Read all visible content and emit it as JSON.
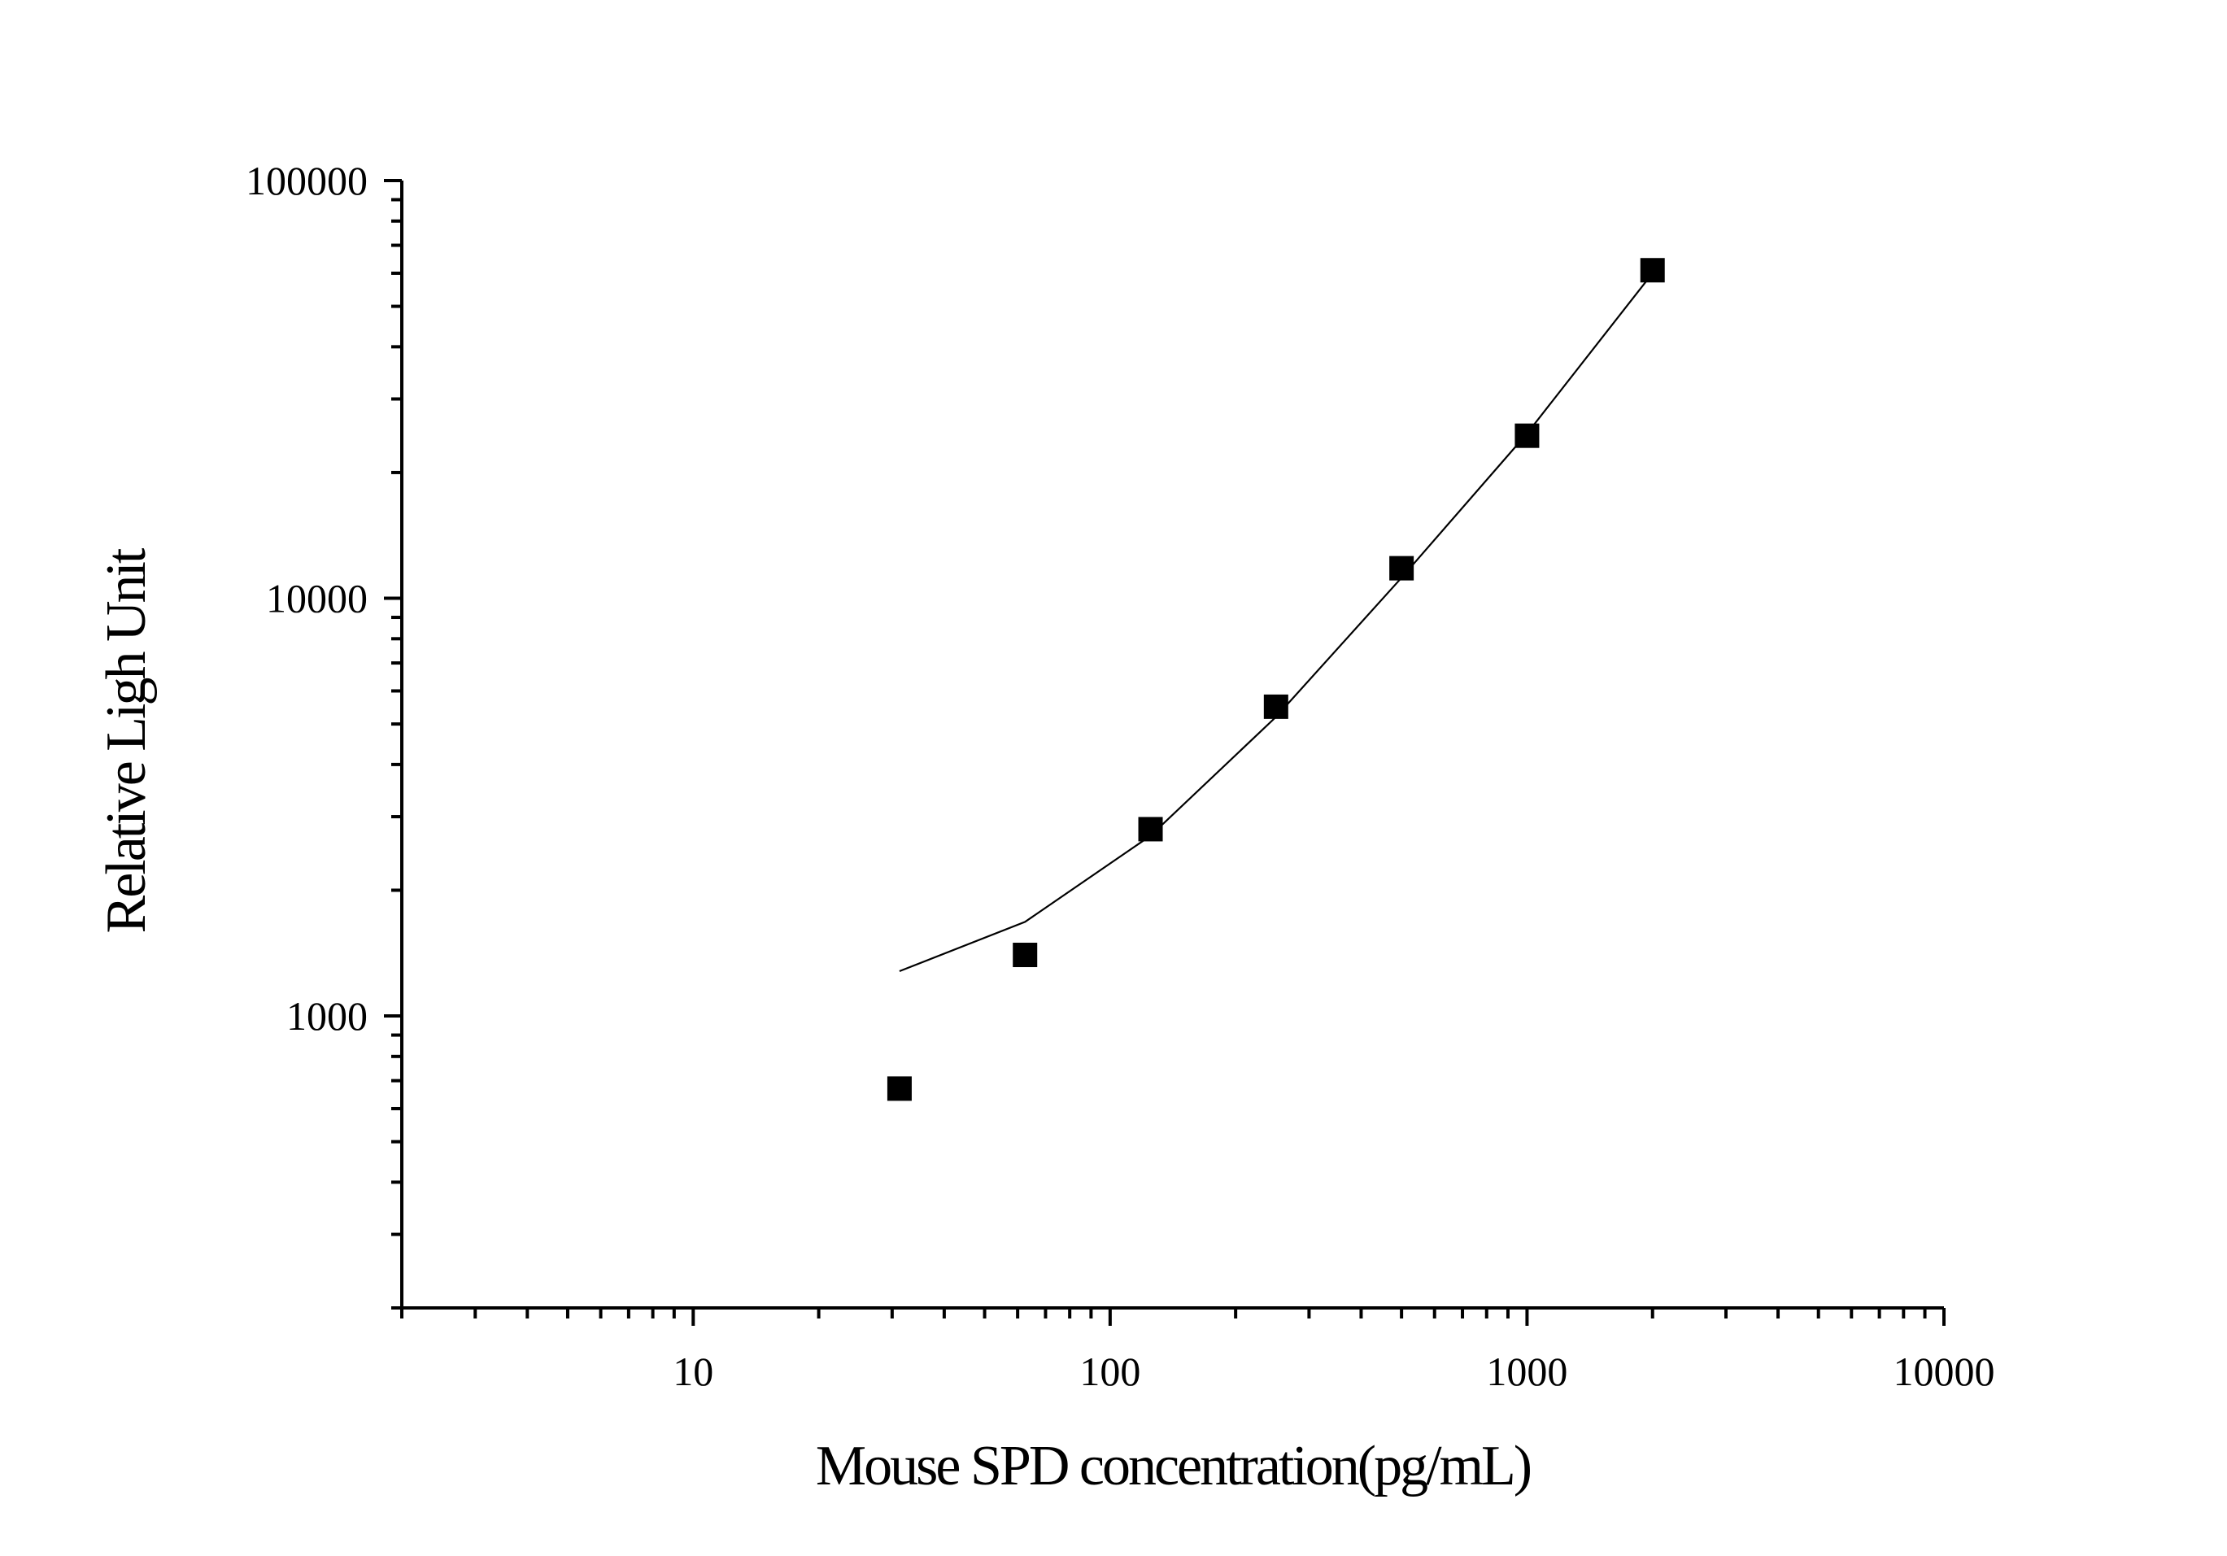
{
  "chart_data": {
    "type": "scatter",
    "title": "",
    "xlabel": "Mouse SPD concentration(pg/mL)",
    "ylabel": "Relative Ligh Unit",
    "xscale": "log",
    "yscale": "log",
    "xlim": [
      2,
      10000
    ],
    "ylim": [
      200,
      100000
    ],
    "grid": false,
    "legend": "none",
    "x_ticks": [
      {
        "value": 10,
        "label": "10"
      },
      {
        "value": 100,
        "label": "100"
      },
      {
        "value": 1000,
        "label": "1000"
      },
      {
        "value": 10000,
        "label": "10000"
      }
    ],
    "y_ticks": [
      {
        "value": 1000,
        "label": "1000"
      },
      {
        "value": 10000,
        "label": "10000"
      },
      {
        "value": 100000,
        "label": "100000"
      }
    ],
    "series": [
      {
        "kind": "points",
        "marker": "square",
        "color": "#000000",
        "x": [
          31.25,
          62.5,
          125,
          250,
          500,
          1000,
          2000
        ],
        "y": [
          670,
          1400,
          2800,
          5500,
          11800,
          24500,
          61000
        ]
      },
      {
        "kind": "fit-line",
        "color": "#000000",
        "x": [
          31.25,
          62.5,
          125,
          250,
          500,
          1000,
          2000
        ],
        "y": [
          1280,
          1680,
          2700,
          5200,
          11200,
          24800,
          60000
        ]
      }
    ]
  }
}
